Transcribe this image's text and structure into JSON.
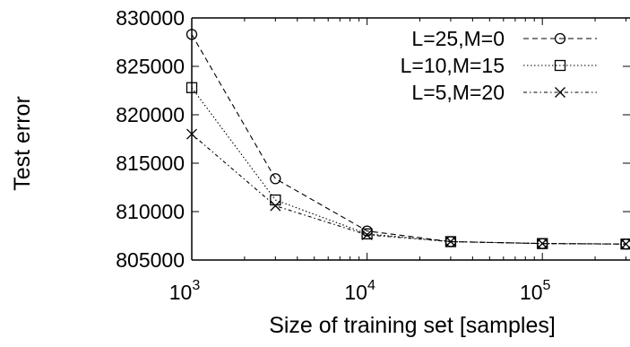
{
  "chart_data": {
    "type": "line",
    "xlabel": "Size of training set [samples]",
    "ylabel": "Test error",
    "xscale": "log",
    "xlim": [
      1000,
      316228
    ],
    "ylim": [
      805000,
      830000
    ],
    "grid": false,
    "legend_position": "top-right",
    "yticks": [
      "805000",
      "810000",
      "815000",
      "820000",
      "825000",
      "830000"
    ],
    "xticks": [
      {
        "base": "10",
        "exp": "3"
      },
      {
        "base": "10",
        "exp": "4"
      },
      {
        "base": "10",
        "exp": "5"
      }
    ],
    "series": [
      {
        "name": "L=25,M=0",
        "marker": "circle",
        "dash": "dashed",
        "x": [
          1000,
          3000,
          10000,
          30000,
          100000,
          300000
        ],
        "y": [
          828300,
          813400,
          808000,
          806900,
          806700,
          806650
        ]
      },
      {
        "name": "L=10,M=15",
        "marker": "square",
        "dash": "dotted",
        "x": [
          1000,
          3000,
          10000,
          30000,
          100000,
          300000
        ],
        "y": [
          822800,
          811200,
          807700,
          806900,
          806700,
          806650
        ]
      },
      {
        "name": "L=5,M=20",
        "marker": "cross",
        "dash": "dash-dot",
        "x": [
          1000,
          3000,
          10000,
          30000,
          100000,
          300000
        ],
        "y": [
          818000,
          810600,
          807600,
          806900,
          806700,
          806650
        ]
      }
    ]
  }
}
